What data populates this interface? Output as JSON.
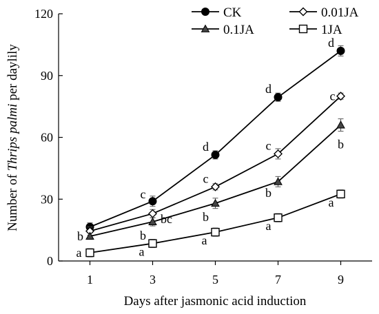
{
  "chart_data": {
    "type": "line",
    "xlabel": "Days after jasmonic acid induction",
    "ylabel": {
      "prefix": "Number of ",
      "italic": "Thrips palmi",
      "suffix": " per daylily"
    },
    "x": [
      1,
      3,
      5,
      7,
      9
    ],
    "x_tick_labels": [
      "1",
      "3",
      "5",
      "7",
      "9"
    ],
    "xlim": [
      0,
      10
    ],
    "ylim": [
      0,
      120
    ],
    "y_ticks": [
      0,
      30,
      60,
      90,
      120
    ],
    "y_tick_labels": [
      "0",
      "30",
      "60",
      "90",
      "120"
    ],
    "grid": false,
    "legend_position": "top-right",
    "series": [
      {
        "name": "CK",
        "marker": "filled-circle",
        "values": [
          16.5,
          29,
          51.5,
          79.5,
          102
        ],
        "errors": [
          2,
          2.5,
          2,
          2,
          2.5
        ],
        "labels": [
          "",
          "c",
          "d",
          "d",
          "d"
        ]
      },
      {
        "name": "0.01JA",
        "marker": "open-diamond",
        "values": [
          14.5,
          23,
          36,
          52,
          80
        ],
        "errors": [
          2,
          2,
          1.5,
          2.5,
          1.5
        ],
        "labels": [
          "",
          "bc",
          "c",
          "c",
          "c"
        ]
      },
      {
        "name": "0.1JA",
        "marker": "filled-triangle",
        "values": [
          12,
          19,
          28,
          38.5,
          66
        ],
        "errors": [
          1.5,
          2,
          2.5,
          2.5,
          3
        ],
        "labels": [
          "b",
          "b",
          "b",
          "b",
          "b"
        ]
      },
      {
        "name": "1JA",
        "marker": "open-square",
        "values": [
          4,
          8.5,
          14,
          21,
          32.5
        ],
        "errors": [
          2,
          2,
          2,
          2,
          2
        ],
        "labels": [
          "a",
          "a",
          "a",
          "a",
          "a"
        ]
      }
    ]
  }
}
